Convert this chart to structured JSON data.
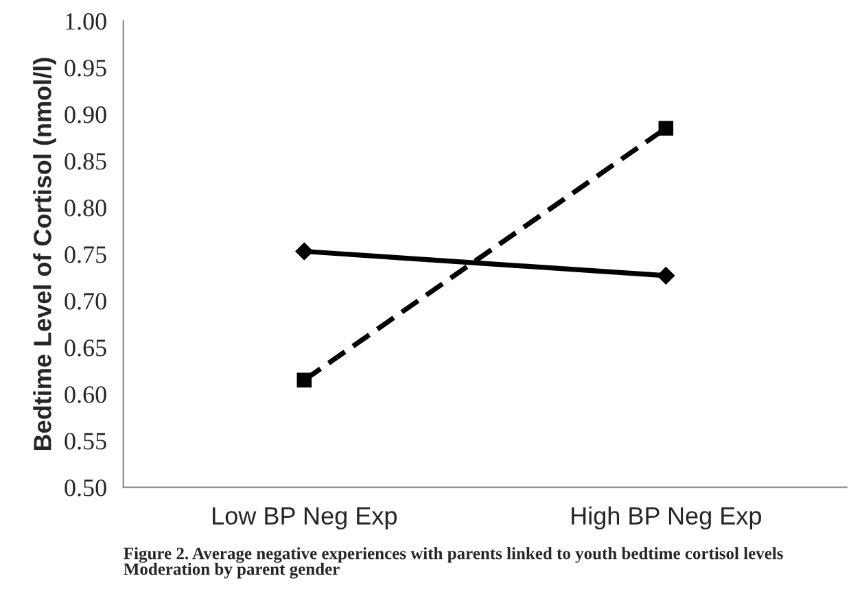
{
  "chart_data": {
    "type": "line",
    "ylabel": "Bedtime Level of Cortisol (nmol/l)",
    "categories": [
      "Low BP Neg Exp",
      "High BP Neg Exp"
    ],
    "series": [
      {
        "color": "#000000",
        "values": [
          0.753,
          0.727
        ],
        "marker": "diamond",
        "line_style": "solid"
      },
      {
        "color": "#000000",
        "values": [
          0.615,
          0.885
        ],
        "marker": "square",
        "line_style": "dashed"
      }
    ],
    "ylim": [
      0.5,
      1.0
    ],
    "yticks": [
      {
        "value": 0.5,
        "label": "0.50"
      },
      {
        "value": 0.55,
        "label": "0.55"
      },
      {
        "value": 0.6,
        "label": "0.60"
      },
      {
        "value": 0.65,
        "label": "0.65"
      },
      {
        "value": 0.7,
        "label": "0.70"
      },
      {
        "value": 0.75,
        "label": "0.75"
      },
      {
        "value": 0.8,
        "label": "0.80"
      },
      {
        "value": 0.85,
        "label": "0.85"
      },
      {
        "value": 0.9,
        "label": "0.90"
      },
      {
        "value": 0.95,
        "label": "0.95"
      },
      {
        "value": 1.0,
        "label": "1.00"
      }
    ],
    "grid": false,
    "legend": false,
    "annotations": [
      "Figure 2. Average negative experiences with parents linked to youth bedtime cortisol levels\nModeration by parent gender"
    ]
  }
}
